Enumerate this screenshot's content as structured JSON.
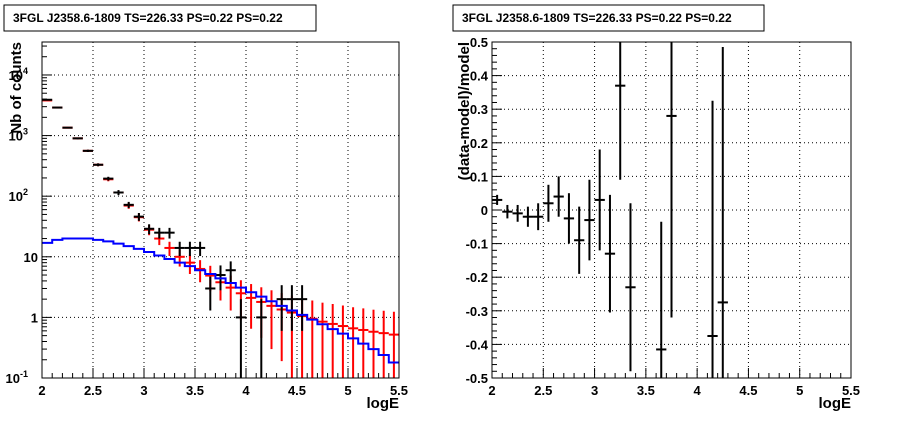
{
  "chart_data": [
    {
      "type": "histogram",
      "title": "3FGL J2358.6-1809 TS=226.33 PS=0.22 PS=0.22",
      "xlabel": "logE",
      "ylabel": "Nb of counts",
      "xlim": [
        2,
        5.5
      ],
      "ylim": [
        0.1,
        35000
      ],
      "yscale": "log",
      "grid": true,
      "x_ticks": [
        "2",
        "2.5",
        "3",
        "3.5",
        "4",
        "4.5",
        "5",
        "5.5"
      ],
      "y_ticks": [
        {
          "label": "10",
          "exp": "-1",
          "value": 0.1
        },
        {
          "label": "1",
          "exp": "",
          "value": 1
        },
        {
          "label": "10",
          "exp": "",
          "value": 10
        },
        {
          "label": "10",
          "exp": "2",
          "value": 100
        },
        {
          "label": "10",
          "exp": "3",
          "value": 1000
        },
        {
          "label": "10",
          "exp": "4",
          "value": 10000
        }
      ],
      "series": [
        {
          "color": "#ff0000",
          "style": "errorbars",
          "x": [
            2.05,
            2.15,
            2.25,
            2.35,
            2.45,
            2.55,
            2.65,
            2.75,
            2.85,
            2.95,
            3.05,
            3.15,
            3.25,
            3.35,
            3.45,
            3.55,
            3.65,
            3.75,
            3.85,
            3.95,
            4.05,
            4.15,
            4.25,
            4.35,
            4.45,
            4.55,
            4.65,
            4.75,
            4.85,
            4.95,
            5.05,
            5.15,
            5.25,
            5.35,
            5.45
          ],
          "y": [
            3800,
            2900,
            1350,
            900,
            560,
            330,
            190,
            115,
            70,
            45,
            28,
            20,
            14,
            10,
            8,
            6.3,
            4.9,
            3.8,
            3.1,
            2.5,
            2.1,
            1.8,
            1.55,
            1.35,
            1.2,
            1.05,
            0.95,
            0.85,
            0.78,
            0.72,
            0.66,
            0.62,
            0.58,
            0.55,
            0.52
          ],
          "yerr_lo": [
            60,
            55,
            37,
            30,
            23,
            18,
            14,
            10,
            8,
            6.7,
            5.3,
            4.4,
            3.7,
            3.1,
            2.8,
            2.5,
            2.2,
            1.9,
            1.8,
            1.6,
            1.45,
            1.34,
            1.25,
            1.16,
            1.1,
            1.02,
            0.95,
            0.85,
            0.78,
            0.72,
            0.66,
            0.62,
            0.58,
            0.55,
            0.52
          ],
          "yerr_hi": [
            60,
            55,
            37,
            30,
            23,
            18,
            14,
            10,
            8,
            6.7,
            5.3,
            4.4,
            3.7,
            3.1,
            2.8,
            2.5,
            2.2,
            1.9,
            1.8,
            1.6,
            1.45,
            1.34,
            1.25,
            1.16,
            1.1,
            1.02,
            0.95,
            0.9,
            0.88,
            0.85,
            0.81,
            0.79,
            0.76,
            0.74,
            0.72
          ]
        },
        {
          "color": "#000000",
          "style": "errorbars",
          "x": [
            2.05,
            2.15,
            2.25,
            2.35,
            2.45,
            2.55,
            2.65,
            2.75,
            2.85,
            2.95,
            3.05,
            3.15,
            3.25,
            3.35,
            3.45,
            3.55,
            3.65,
            3.75,
            3.85,
            3.95,
            4.15,
            4.35,
            4.45,
            4.55
          ],
          "y": [
            3900,
            2900,
            1350,
            900,
            560,
            330,
            195,
            115,
            72,
            46,
            29,
            25,
            25,
            14,
            14,
            14,
            3,
            5,
            6,
            1,
            1,
            2,
            2,
            2
          ],
          "yerr_lo": [
            62,
            54,
            37,
            30,
            24,
            18,
            14,
            11,
            8.5,
            6.8,
            5.4,
            5,
            5,
            3.7,
            3.7,
            3.7,
            1.7,
            2.2,
            2.4,
            0.97,
            0.97,
            1.4,
            1.4,
            1.4
          ],
          "yerr_hi": [
            62,
            54,
            37,
            30,
            24,
            18,
            14,
            11,
            8.5,
            6.8,
            5.4,
            5,
            5,
            3.7,
            3.7,
            3.7,
            1.7,
            2.2,
            2.4,
            1,
            1,
            1.4,
            1.4,
            1.4
          ]
        },
        {
          "color": "#0000ff",
          "style": "step",
          "x": [
            2.05,
            2.15,
            2.25,
            2.35,
            2.45,
            2.55,
            2.65,
            2.75,
            2.85,
            2.95,
            3.05,
            3.15,
            3.25,
            3.35,
            3.45,
            3.55,
            3.65,
            3.75,
            3.85,
            3.95,
            4.05,
            4.15,
            4.25,
            4.35,
            4.45,
            4.55,
            4.65,
            4.75,
            4.85,
            4.95,
            5.05,
            5.15,
            5.25,
            5.35,
            5.45
          ],
          "y": [
            17,
            19,
            20,
            20,
            20,
            19,
            18,
            16.5,
            15,
            13.5,
            12,
            10.5,
            9.2,
            8,
            7,
            6,
            5.2,
            4.4,
            3.7,
            3.1,
            2.6,
            2.2,
            1.85,
            1.55,
            1.3,
            1.1,
            0.92,
            0.77,
            0.64,
            0.54,
            0.45,
            0.37,
            0.3,
            0.24,
            0.18
          ]
        }
      ]
    },
    {
      "type": "scatter",
      "title": "3FGL J2358.6-1809 TS=226.33 PS=0.22 PS=0.22",
      "xlabel": "logE",
      "ylabel": "(data-model)/model",
      "xlim": [
        2,
        5.5
      ],
      "ylim": [
        -0.5,
        0.5
      ],
      "grid": true,
      "x_ticks": [
        "2",
        "2.5",
        "3",
        "3.5",
        "4",
        "4.5",
        "5",
        "5.5"
      ],
      "y_ticks": [
        "-0.5",
        "-0.4",
        "-0.3",
        "-0.2",
        "-0.1",
        "0",
        "0.1",
        "0.2",
        "0.3",
        "0.4",
        "0.5"
      ],
      "series": [
        {
          "color": "#000000",
          "style": "errorbars",
          "x": [
            2.05,
            2.15,
            2.25,
            2.35,
            2.45,
            2.55,
            2.65,
            2.75,
            2.85,
            2.95,
            3.05,
            3.15,
            3.25,
            3.35,
            3.65,
            3.75,
            4.15,
            4.25
          ],
          "y": [
            0.03,
            -0.005,
            -0.01,
            -0.02,
            -0.02,
            0.02,
            0.04,
            -0.025,
            -0.09,
            -0.03,
            0.03,
            -0.13,
            0.37,
            -0.23,
            -0.415,
            0.28,
            -0.375,
            -0.275
          ],
          "yerr": [
            0.015,
            0.02,
            0.025,
            0.03,
            0.04,
            0.055,
            0.06,
            0.075,
            0.1,
            0.12,
            0.15,
            0.175,
            0.28,
            0.25,
            0.38,
            0.6,
            0.7,
            0.76
          ]
        }
      ]
    }
  ]
}
